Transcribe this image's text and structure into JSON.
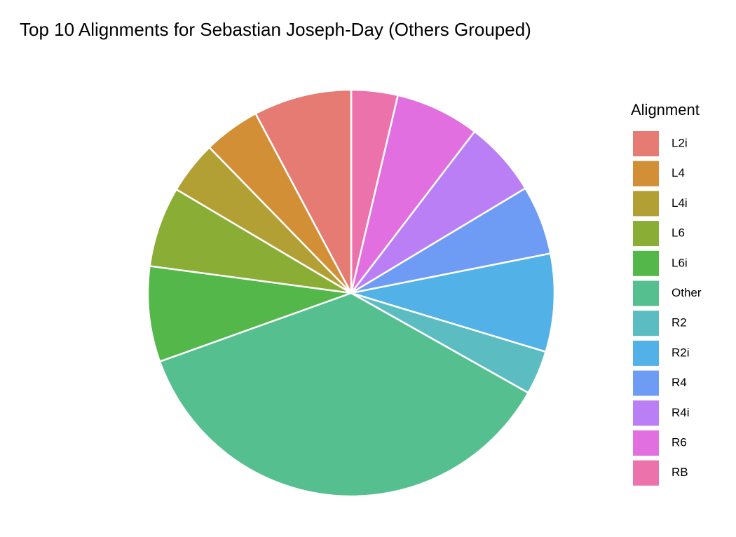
{
  "chart_data": {
    "type": "pie",
    "title": "Top 10 Alignments for Sebastian Joseph-Day (Others Grouped)",
    "legend_title": "Alignment",
    "categories": [
      "L2i",
      "L4",
      "L4i",
      "L6",
      "L6i",
      "Other",
      "R2",
      "R2i",
      "R4",
      "R4i",
      "R6",
      "RB"
    ],
    "values": [
      7.8,
      4.5,
      4.2,
      6.4,
      7.6,
      36.4,
      3.5,
      7.8,
      5.5,
      6.0,
      6.7,
      3.7
    ],
    "colors": [
      "#e57b72",
      "#d38f35",
      "#b3a035",
      "#8aad36",
      "#53b74a",
      "#56bf8f",
      "#5bbdc2",
      "#52b1e6",
      "#6e9cf5",
      "#bb7ff5",
      "#e16fdf",
      "#ec72ac"
    ],
    "legend": "right"
  }
}
